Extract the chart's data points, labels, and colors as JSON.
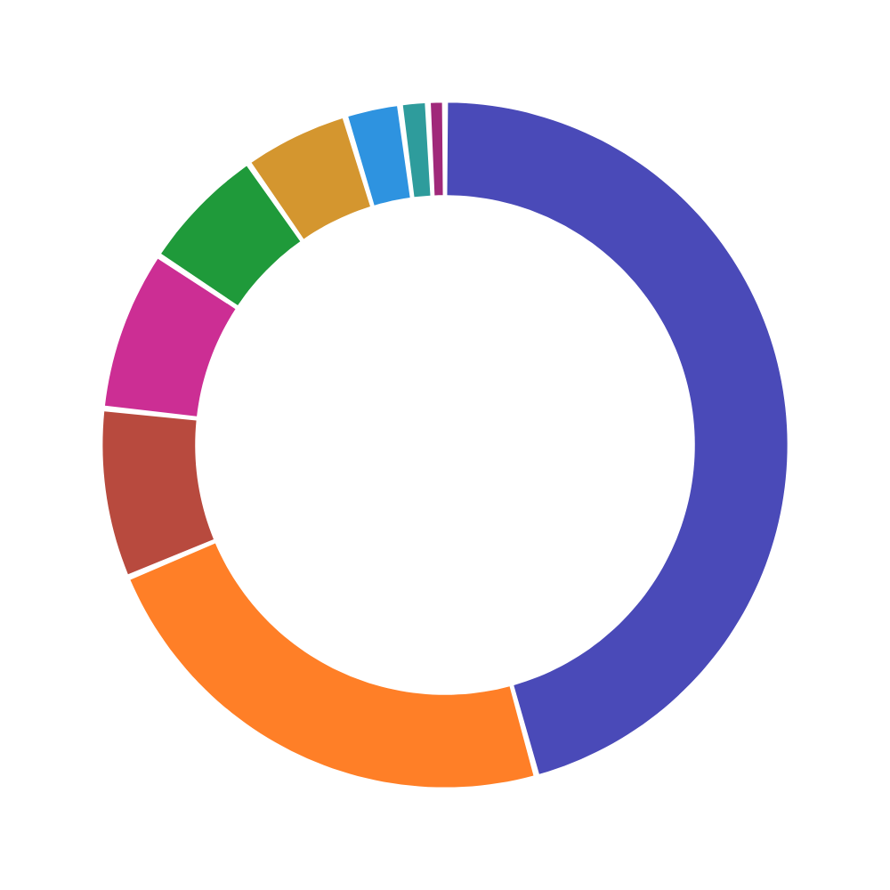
{
  "chart_data": {
    "type": "donut",
    "categories": [
      null,
      null,
      null,
      null,
      null,
      null,
      null,
      null,
      null
    ],
    "values": [
      45.7,
      23,
      8,
      7.6,
      6,
      5,
      2.6,
      1.3,
      0.8
    ],
    "colors": [
      "#4a4ab8",
      "#ff7f27",
      "#b84a3e",
      "#cc2e94",
      "#1f9a3a",
      "#d4962f",
      "#2e93e0",
      "#2e9c9c",
      "#a0287a"
    ]
  }
}
